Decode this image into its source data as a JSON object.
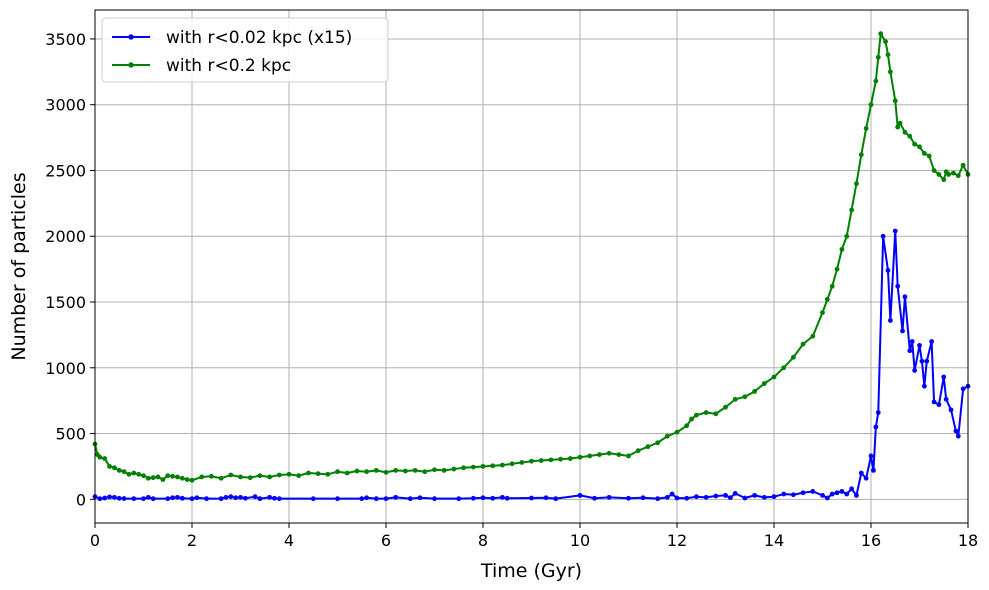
{
  "chart_data": {
    "type": "line",
    "title": "",
    "xlabel": "Time (Gyr)",
    "ylabel": "Number of particles",
    "xlim": [
      0,
      18
    ],
    "ylim": [
      -180,
      3720
    ],
    "xticks": [
      "0",
      "2",
      "4",
      "6",
      "8",
      "10",
      "12",
      "14",
      "16",
      "18"
    ],
    "yticks": [
      "0",
      "500",
      "1000",
      "1500",
      "2000",
      "2500",
      "3000",
      "3500"
    ],
    "grid": true,
    "legend_position": "top-left",
    "series": [
      {
        "name": "with r<0.02 kpc (x15)",
        "color": "#0000ff",
        "points": [
          [
            0.0,
            20
          ],
          [
            0.1,
            5
          ],
          [
            0.2,
            10
          ],
          [
            0.3,
            18
          ],
          [
            0.4,
            15
          ],
          [
            0.5,
            8
          ],
          [
            0.6,
            6
          ],
          [
            0.8,
            5
          ],
          [
            1.0,
            5
          ],
          [
            1.1,
            15
          ],
          [
            1.2,
            5
          ],
          [
            1.5,
            5
          ],
          [
            1.6,
            12
          ],
          [
            1.7,
            15
          ],
          [
            1.8,
            8
          ],
          [
            2.0,
            5
          ],
          [
            2.1,
            12
          ],
          [
            2.3,
            5
          ],
          [
            2.6,
            5
          ],
          [
            2.7,
            15
          ],
          [
            2.8,
            20
          ],
          [
            2.9,
            12
          ],
          [
            3.0,
            15
          ],
          [
            3.1,
            8
          ],
          [
            3.3,
            20
          ],
          [
            3.4,
            5
          ],
          [
            3.6,
            15
          ],
          [
            3.7,
            8
          ],
          [
            3.8,
            5
          ],
          [
            4.5,
            5
          ],
          [
            5.0,
            5
          ],
          [
            5.5,
            5
          ],
          [
            5.6,
            12
          ],
          [
            5.8,
            5
          ],
          [
            6.0,
            5
          ],
          [
            6.2,
            15
          ],
          [
            6.5,
            5
          ],
          [
            6.7,
            12
          ],
          [
            7.0,
            5
          ],
          [
            7.5,
            5
          ],
          [
            7.8,
            8
          ],
          [
            8.0,
            12
          ],
          [
            8.2,
            8
          ],
          [
            8.4,
            15
          ],
          [
            8.5,
            8
          ],
          [
            9.0,
            10
          ],
          [
            9.3,
            12
          ],
          [
            9.5,
            5
          ],
          [
            10.0,
            30
          ],
          [
            10.3,
            8
          ],
          [
            10.6,
            15
          ],
          [
            11.0,
            8
          ],
          [
            11.3,
            12
          ],
          [
            11.6,
            5
          ],
          [
            11.8,
            15
          ],
          [
            11.9,
            40
          ],
          [
            12.0,
            10
          ],
          [
            12.2,
            8
          ],
          [
            12.4,
            20
          ],
          [
            12.6,
            15
          ],
          [
            12.8,
            25
          ],
          [
            13.0,
            30
          ],
          [
            13.1,
            12
          ],
          [
            13.2,
            45
          ],
          [
            13.4,
            10
          ],
          [
            13.6,
            30
          ],
          [
            13.8,
            15
          ],
          [
            14.0,
            20
          ],
          [
            14.2,
            40
          ],
          [
            14.4,
            35
          ],
          [
            14.6,
            50
          ],
          [
            14.8,
            60
          ],
          [
            15.0,
            30
          ],
          [
            15.1,
            10
          ],
          [
            15.2,
            40
          ],
          [
            15.3,
            50
          ],
          [
            15.4,
            60
          ],
          [
            15.5,
            40
          ],
          [
            15.6,
            80
          ],
          [
            15.7,
            30
          ],
          [
            15.8,
            200
          ],
          [
            15.9,
            160
          ],
          [
            16.0,
            330
          ],
          [
            16.05,
            220
          ],
          [
            16.1,
            550
          ],
          [
            16.15,
            660
          ],
          [
            16.25,
            2000
          ],
          [
            16.35,
            1740
          ],
          [
            16.4,
            1360
          ],
          [
            16.5,
            2040
          ],
          [
            16.55,
            1620
          ],
          [
            16.65,
            1280
          ],
          [
            16.7,
            1540
          ],
          [
            16.8,
            1130
          ],
          [
            16.85,
            1200
          ],
          [
            16.9,
            980
          ],
          [
            17.0,
            1170
          ],
          [
            17.05,
            1050
          ],
          [
            17.1,
            860
          ],
          [
            17.15,
            1050
          ],
          [
            17.25,
            1200
          ],
          [
            17.3,
            740
          ],
          [
            17.4,
            720
          ],
          [
            17.5,
            930
          ],
          [
            17.55,
            760
          ],
          [
            17.65,
            680
          ],
          [
            17.75,
            520
          ],
          [
            17.8,
            480
          ],
          [
            17.9,
            840
          ],
          [
            18.0,
            860
          ]
        ]
      },
      {
        "name": "with r<0.2 kpc",
        "color": "#008000",
        "points": [
          [
            0.0,
            420
          ],
          [
            0.05,
            340
          ],
          [
            0.1,
            320
          ],
          [
            0.2,
            310
          ],
          [
            0.3,
            250
          ],
          [
            0.4,
            240
          ],
          [
            0.5,
            220
          ],
          [
            0.6,
            210
          ],
          [
            0.7,
            190
          ],
          [
            0.8,
            200
          ],
          [
            0.9,
            190
          ],
          [
            1.0,
            180
          ],
          [
            1.1,
            160
          ],
          [
            1.2,
            165
          ],
          [
            1.3,
            170
          ],
          [
            1.4,
            150
          ],
          [
            1.5,
            180
          ],
          [
            1.6,
            175
          ],
          [
            1.7,
            170
          ],
          [
            1.8,
            160
          ],
          [
            1.9,
            150
          ],
          [
            2.0,
            145
          ],
          [
            2.2,
            170
          ],
          [
            2.4,
            175
          ],
          [
            2.6,
            160
          ],
          [
            2.8,
            185
          ],
          [
            3.0,
            170
          ],
          [
            3.2,
            165
          ],
          [
            3.4,
            180
          ],
          [
            3.6,
            170
          ],
          [
            3.8,
            185
          ],
          [
            4.0,
            190
          ],
          [
            4.2,
            180
          ],
          [
            4.4,
            200
          ],
          [
            4.6,
            195
          ],
          [
            4.8,
            190
          ],
          [
            5.0,
            210
          ],
          [
            5.2,
            200
          ],
          [
            5.4,
            215
          ],
          [
            5.6,
            210
          ],
          [
            5.8,
            220
          ],
          [
            6.0,
            205
          ],
          [
            6.2,
            220
          ],
          [
            6.4,
            215
          ],
          [
            6.6,
            220
          ],
          [
            6.8,
            210
          ],
          [
            7.0,
            225
          ],
          [
            7.2,
            220
          ],
          [
            7.4,
            230
          ],
          [
            7.6,
            240
          ],
          [
            7.8,
            245
          ],
          [
            8.0,
            250
          ],
          [
            8.2,
            255
          ],
          [
            8.4,
            260
          ],
          [
            8.6,
            270
          ],
          [
            8.8,
            280
          ],
          [
            9.0,
            290
          ],
          [
            9.2,
            295
          ],
          [
            9.4,
            300
          ],
          [
            9.6,
            305
          ],
          [
            9.8,
            310
          ],
          [
            10.0,
            320
          ],
          [
            10.2,
            330
          ],
          [
            10.4,
            340
          ],
          [
            10.6,
            350
          ],
          [
            10.8,
            340
          ],
          [
            11.0,
            330
          ],
          [
            11.2,
            370
          ],
          [
            11.4,
            400
          ],
          [
            11.6,
            430
          ],
          [
            11.8,
            480
          ],
          [
            12.0,
            510
          ],
          [
            12.2,
            560
          ],
          [
            12.3,
            610
          ],
          [
            12.4,
            640
          ],
          [
            12.6,
            660
          ],
          [
            12.8,
            650
          ],
          [
            13.0,
            700
          ],
          [
            13.2,
            760
          ],
          [
            13.4,
            780
          ],
          [
            13.6,
            820
          ],
          [
            13.8,
            880
          ],
          [
            14.0,
            930
          ],
          [
            14.2,
            1000
          ],
          [
            14.4,
            1080
          ],
          [
            14.6,
            1180
          ],
          [
            14.8,
            1240
          ],
          [
            15.0,
            1420
          ],
          [
            15.1,
            1520
          ],
          [
            15.2,
            1620
          ],
          [
            15.3,
            1750
          ],
          [
            15.4,
            1900
          ],
          [
            15.5,
            2000
          ],
          [
            15.6,
            2200
          ],
          [
            15.7,
            2400
          ],
          [
            15.8,
            2620
          ],
          [
            15.9,
            2820
          ],
          [
            16.0,
            3000
          ],
          [
            16.1,
            3180
          ],
          [
            16.15,
            3360
          ],
          [
            16.2,
            3540
          ],
          [
            16.3,
            3480
          ],
          [
            16.35,
            3380
          ],
          [
            16.4,
            3250
          ],
          [
            16.5,
            3030
          ],
          [
            16.55,
            2830
          ],
          [
            16.6,
            2860
          ],
          [
            16.7,
            2790
          ],
          [
            16.8,
            2760
          ],
          [
            16.9,
            2700
          ],
          [
            17.0,
            2680
          ],
          [
            17.1,
            2630
          ],
          [
            17.2,
            2610
          ],
          [
            17.3,
            2500
          ],
          [
            17.4,
            2470
          ],
          [
            17.5,
            2430
          ],
          [
            17.55,
            2490
          ],
          [
            17.6,
            2470
          ],
          [
            17.7,
            2480
          ],
          [
            17.8,
            2460
          ],
          [
            17.9,
            2540
          ],
          [
            18.0,
            2470
          ]
        ]
      }
    ]
  }
}
